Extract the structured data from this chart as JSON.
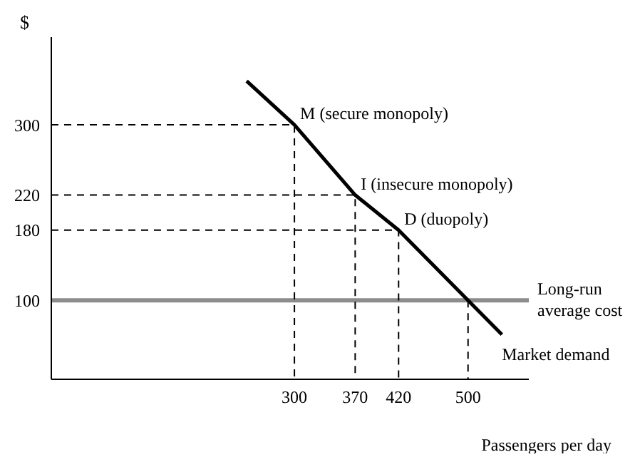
{
  "chart_data": {
    "type": "line",
    "ylabel": "$",
    "xlabel": "Passengers per day",
    "xlim": [
      20,
      570
    ],
    "ylim": [
      10,
      400
    ],
    "xticks": [
      300,
      370,
      420,
      500
    ],
    "yticks": [
      100,
      180,
      220,
      300
    ],
    "marker": "none",
    "series": [
      {
        "name": "Market demand",
        "color": "#000000",
        "x": [
          245,
          300,
          370,
          420,
          500,
          539
        ],
        "values": [
          350,
          300,
          220,
          180,
          100,
          61
        ],
        "line_style": "solid"
      },
      {
        "color": "#000000",
        "x": [
          20,
          300,
          300
        ],
        "values": [
          300,
          300,
          10
        ],
        "line_style": "dashed"
      },
      {
        "color": "#000000",
        "x": [
          20,
          370,
          370
        ],
        "values": [
          220,
          220,
          10
        ],
        "line_style": "dashed"
      },
      {
        "color": "#000000",
        "x": [
          20,
          420,
          420
        ],
        "values": [
          180,
          180,
          10
        ],
        "line_style": "dashed"
      },
      {
        "color": "#000000",
        "x": [
          500,
          500
        ],
        "values": [
          100,
          10
        ],
        "line_style": "dashed"
      }
    ],
    "ref_lines": [
      {
        "axis": "y",
        "value": 100,
        "label": "Long-run average cost",
        "color": "#8c8c8c"
      }
    ],
    "annotations": [
      {
        "text": "M (secure monopoly)",
        "x": 300,
        "y": 300
      },
      {
        "text": "I (insecure monopoly)",
        "x": 370,
        "y": 220
      },
      {
        "text": "D (duopoly)",
        "x": 420,
        "y": 180
      }
    ]
  }
}
